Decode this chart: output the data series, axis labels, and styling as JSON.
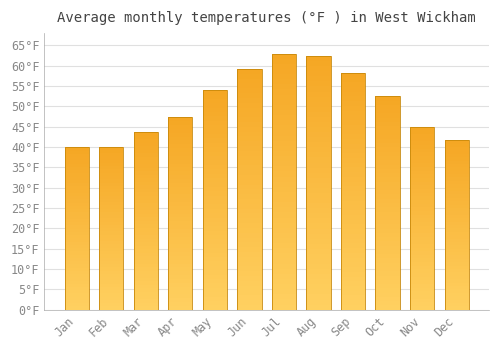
{
  "title": "Average monthly temperatures (°F ) in West Wickham",
  "months": [
    "Jan",
    "Feb",
    "Mar",
    "Apr",
    "May",
    "Jun",
    "Jul",
    "Aug",
    "Sep",
    "Oct",
    "Nov",
    "Dec"
  ],
  "values": [
    39.9,
    40.1,
    43.7,
    47.3,
    54.0,
    59.2,
    63.0,
    62.4,
    58.3,
    52.5,
    45.0,
    41.7
  ],
  "bar_color_top": "#F5A623",
  "bar_color_bottom": "#FFD060",
  "bar_edge_color": "#C8880A",
  "background_color": "#FFFFFF",
  "grid_color": "#E0E0E0",
  "tick_label_color": "#888888",
  "title_color": "#444444",
  "ylim": [
    0,
    68
  ],
  "ytick_step": 5,
  "title_fontsize": 10,
  "tick_fontsize": 8.5
}
